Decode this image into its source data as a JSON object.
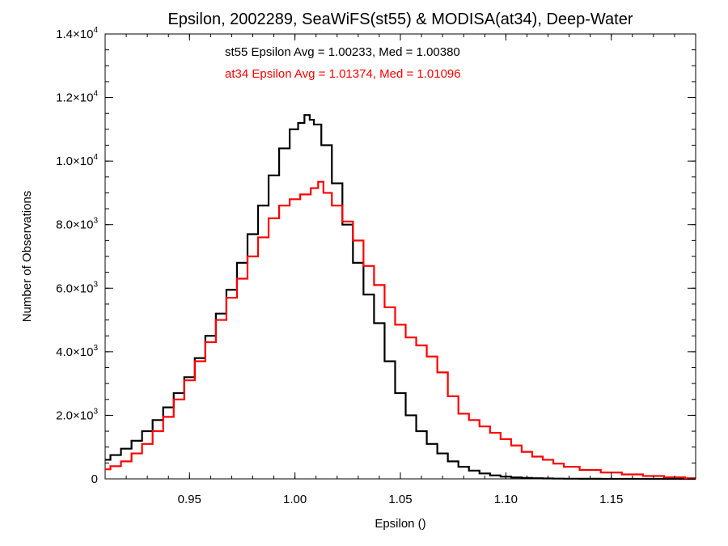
{
  "chart_data": {
    "type": "line",
    "title": "Epsilon, 2002289, SeaWiFS(st55) & MODISA(at34), Deep-Water",
    "xlabel": "Epsilon ()",
    "ylabel": "Number of Observations",
    "xlim": [
      0.91,
      1.19
    ],
    "ylim": [
      0,
      14000
    ],
    "grid": false,
    "drawstyle": "steps-mid",
    "x_ticks": [
      0.95,
      1.0,
      1.05,
      1.1,
      1.15
    ],
    "x_tick_labels": [
      "0.95",
      "1.00",
      "1.05",
      "1.10",
      "1.15"
    ],
    "y_ticks": [
      0,
      2000,
      4000,
      6000,
      8000,
      10000,
      12000,
      14000
    ],
    "y_tick_labels": [
      {
        "mant": "0",
        "exp": ""
      },
      {
        "mant": "2.0×10",
        "exp": "3"
      },
      {
        "mant": "4.0×10",
        "exp": "3"
      },
      {
        "mant": "6.0×10",
        "exp": "3"
      },
      {
        "mant": "8.0×10",
        "exp": "3"
      },
      {
        "mant": "1.0×10",
        "exp": "4"
      },
      {
        "mant": "1.2×10",
        "exp": "4"
      },
      {
        "mant": "1.4×10",
        "exp": "4"
      }
    ],
    "annotations": [
      {
        "text": "st55 Epsilon Avg = 1.00233, Med = 1.00380",
        "color": "#000000"
      },
      {
        "text": "at34 Epsilon Avg = 1.01374, Med = 1.01096",
        "color": "#ff0000"
      }
    ],
    "series": [
      {
        "color": "#000000",
        "x": [
          0.91,
          0.915,
          0.92,
          0.925,
          0.93,
          0.935,
          0.94,
          0.945,
          0.95,
          0.955,
          0.96,
          0.965,
          0.97,
          0.975,
          0.98,
          0.985,
          0.99,
          0.995,
          1.0,
          1.003,
          1.006,
          1.008,
          1.01,
          1.015,
          1.02,
          1.025,
          1.03,
          1.035,
          1.04,
          1.045,
          1.05,
          1.055,
          1.06,
          1.065,
          1.07,
          1.075,
          1.08,
          1.085,
          1.09,
          1.095,
          1.1,
          1.105,
          1.11,
          1.115,
          1.12,
          1.125,
          1.13,
          1.14,
          1.15,
          1.16,
          1.17,
          1.18,
          1.19
        ],
        "values": [
          600,
          750,
          950,
          1200,
          1500,
          1850,
          2250,
          2700,
          3200,
          3800,
          4500,
          5200,
          5950,
          6800,
          7700,
          8600,
          9550,
          10400,
          11000,
          11200,
          11450,
          11300,
          11150,
          10500,
          9300,
          8000,
          6800,
          5800,
          4900,
          3700,
          2700,
          2000,
          1500,
          1100,
          800,
          550,
          380,
          260,
          170,
          110,
          70,
          45,
          30,
          20,
          12,
          8,
          5,
          3,
          2,
          1,
          0,
          0,
          0
        ],
        "name": ""
      },
      {
        "color": "#ff0000",
        "x": [
          0.91,
          0.915,
          0.92,
          0.925,
          0.93,
          0.935,
          0.94,
          0.945,
          0.95,
          0.955,
          0.96,
          0.965,
          0.97,
          0.975,
          0.98,
          0.985,
          0.99,
          0.995,
          1.0,
          1.005,
          1.01,
          1.012,
          1.015,
          1.02,
          1.025,
          1.03,
          1.035,
          1.04,
          1.045,
          1.05,
          1.055,
          1.06,
          1.065,
          1.07,
          1.075,
          1.08,
          1.085,
          1.09,
          1.095,
          1.1,
          1.105,
          1.11,
          1.115,
          1.12,
          1.125,
          1.13,
          1.14,
          1.15,
          1.16,
          1.17,
          1.18,
          1.19
        ],
        "values": [
          300,
          400,
          550,
          800,
          1100,
          1500,
          1950,
          2500,
          3100,
          3700,
          4300,
          5000,
          5700,
          6300,
          7000,
          7600,
          8200,
          8600,
          8800,
          8950,
          9150,
          9350,
          9000,
          8600,
          8100,
          7500,
          6700,
          6100,
          5400,
          4850,
          4450,
          4200,
          3850,
          3350,
          2600,
          2050,
          1850,
          1650,
          1450,
          1250,
          1050,
          850,
          700,
          600,
          480,
          380,
          280,
          200,
          140,
          90,
          50,
          20
        ],
        "name": ""
      }
    ]
  }
}
